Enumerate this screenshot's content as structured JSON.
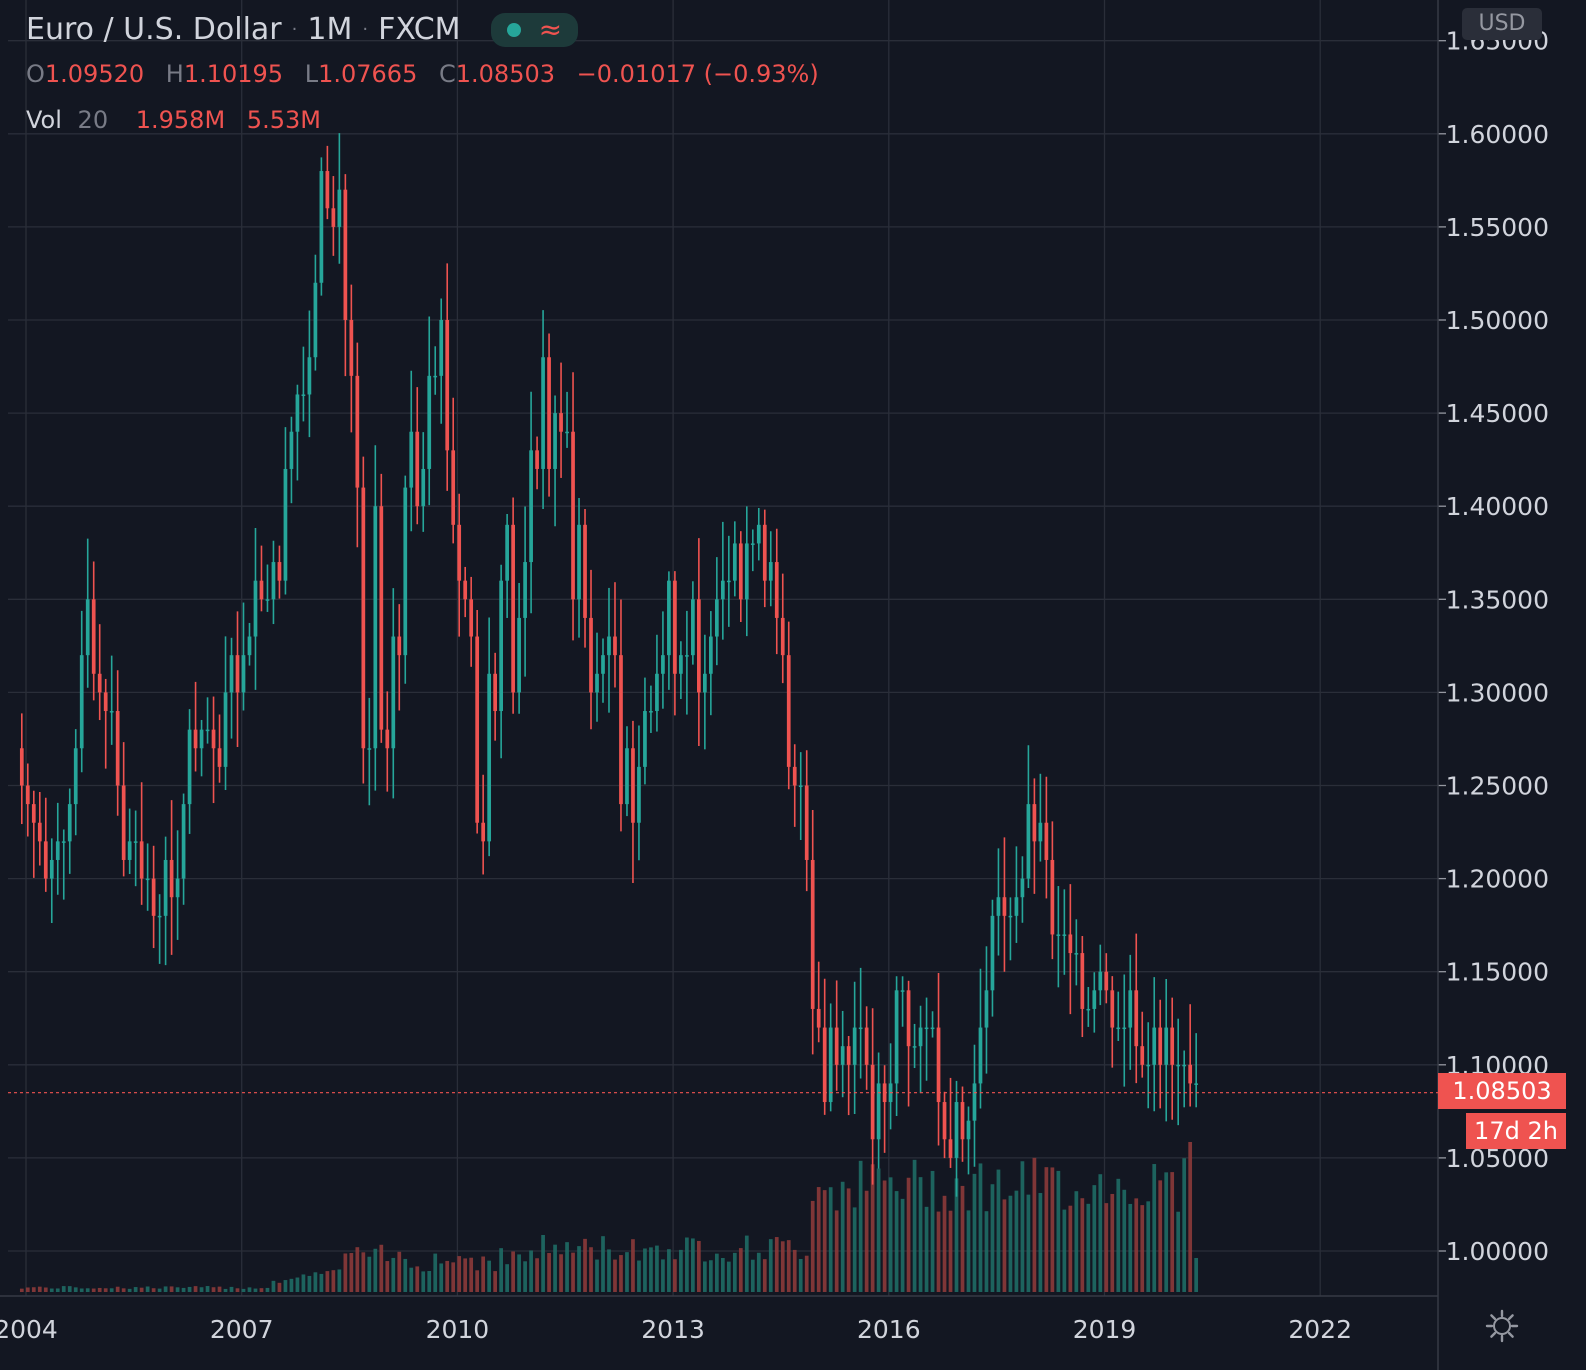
{
  "header": {
    "symbol": "Euro / U.S. Dollar",
    "interval": "1M",
    "exchange": "FXCM"
  },
  "ohlc": {
    "o_label": "O",
    "o_value": "1.09520",
    "h_label": "H",
    "h_value": "1.10195",
    "l_label": "L",
    "l_value": "1.07665",
    "c_label": "C",
    "c_value": "1.08503",
    "change": "−0.01017 (−0.93%)"
  },
  "volume": {
    "label": "Vol",
    "length": "20",
    "value": "1.958M",
    "ma_value": "5.53M"
  },
  "price_axis": {
    "currency": "USD"
  },
  "last_price_tag": "1.08503",
  "countdown_tag": "17d 2h",
  "colors": {
    "background": "#131722",
    "grid": "#2a2e39",
    "up": "#26a69a",
    "down": "#ef5350",
    "up_volume": "#1f6b65",
    "down_volume": "#8c3a3a",
    "text": "#d1d4dc"
  },
  "chart_data": {
    "type": "candlestick",
    "title": "Euro / U.S. Dollar · 1M · FXCM",
    "y_ticks": [
      "1.00000",
      "1.05000",
      "1.10000",
      "1.15000",
      "1.20000",
      "1.25000",
      "1.30000",
      "1.35000",
      "1.40000",
      "1.45000",
      "1.50000",
      "1.55000",
      "1.60000",
      "1.65000"
    ],
    "x_ticks": [
      "2004",
      "2007",
      "2010",
      "2013",
      "2016",
      "2019",
      "2022"
    ],
    "ylim": [
      0.977,
      1.663
    ],
    "xlim": [
      2004.0,
      2023.6
    ],
    "last_close": 1.08503,
    "close_series": {
      "start": "2004-01",
      "frequency": "monthly",
      "values": [
        1.25,
        1.24,
        1.23,
        1.22,
        1.2,
        1.21,
        1.22,
        1.22,
        1.24,
        1.27,
        1.32,
        1.35,
        1.31,
        1.3,
        1.29,
        1.29,
        1.25,
        1.21,
        1.22,
        1.22,
        1.2,
        1.2,
        1.18,
        1.18,
        1.21,
        1.19,
        1.2,
        1.24,
        1.28,
        1.27,
        1.28,
        1.28,
        1.27,
        1.26,
        1.3,
        1.32,
        1.3,
        1.32,
        1.33,
        1.36,
        1.35,
        1.35,
        1.37,
        1.36,
        1.42,
        1.44,
        1.46,
        1.46,
        1.48,
        1.52,
        1.58,
        1.56,
        1.55,
        1.57,
        1.5,
        1.47,
        1.41,
        1.27,
        1.27,
        1.4,
        1.28,
        1.27,
        1.33,
        1.32,
        1.41,
        1.44,
        1.4,
        1.42,
        1.47,
        1.47,
        1.5,
        1.43,
        1.39,
        1.36,
        1.35,
        1.33,
        1.23,
        1.22,
        1.31,
        1.29,
        1.36,
        1.39,
        1.3,
        1.34,
        1.37,
        1.43,
        1.42,
        1.48,
        1.42,
        1.45,
        1.44,
        1.44,
        1.35,
        1.39,
        1.34,
        1.3,
        1.31,
        1.32,
        1.33,
        1.32,
        1.24,
        1.27,
        1.23,
        1.26,
        1.29,
        1.29,
        1.31,
        1.32,
        1.36,
        1.31,
        1.32,
        1.32,
        1.35,
        1.3,
        1.31,
        1.33,
        1.35,
        1.36,
        1.36,
        1.38,
        1.35,
        1.38,
        1.38,
        1.39,
        1.36,
        1.37,
        1.34,
        1.32,
        1.26,
        1.25,
        1.25,
        1.21,
        1.13,
        1.12,
        1.08,
        1.12,
        1.1,
        1.11,
        1.1,
        1.12,
        1.12,
        1.1,
        1.06,
        1.09,
        1.08,
        1.09,
        1.14,
        1.14,
        1.11,
        1.11,
        1.12,
        1.12,
        1.12,
        1.08,
        1.06,
        1.05,
        1.08,
        1.06,
        1.07,
        1.09,
        1.12,
        1.14,
        1.18,
        1.19,
        1.18,
        1.18,
        1.19,
        1.2,
        1.24,
        1.22,
        1.23,
        1.21,
        1.17,
        1.17,
        1.17,
        1.16,
        1.16,
        1.13,
        1.13,
        1.14,
        1.15,
        1.14,
        1.12,
        1.12,
        1.12,
        1.14,
        1.11,
        1.1,
        1.1,
        1.12,
        1.1,
        1.12,
        1.1,
        1.1,
        1.1,
        1.09,
        1.09
      ]
    },
    "volume_series": {
      "start": "2004-01",
      "frequency": "monthly",
      "unit": "million",
      "approx_profile": "very low (~0.1M) 2004–2007, rising to ~1–2.5M 2008–2014, ~5–8M 2015–2019, last bar 1.958M with 20-period MA 5.53M"
    }
  }
}
